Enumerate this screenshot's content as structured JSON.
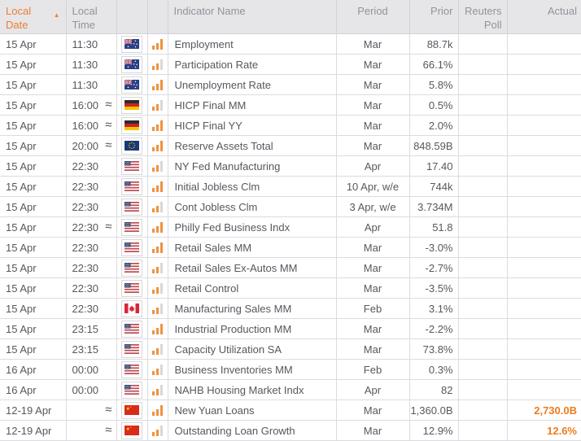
{
  "table": {
    "columns": {
      "date": "Local Date",
      "time": "Local Time",
      "indicator": "Indicator Name",
      "period": "Period",
      "prior": "Prior",
      "poll": "Reuters Poll",
      "actual": "Actual"
    },
    "sort": {
      "column": "Local Date",
      "direction": "ascending",
      "icon": "▲"
    },
    "approx_symbol": "≈",
    "rows": [
      {
        "date": "15 Apr",
        "time": "11:30",
        "approx": false,
        "country": "australia",
        "relevance": "high",
        "indicator": "Employment",
        "period": "Mar",
        "prior": "88.7k",
        "poll": "",
        "actual": ""
      },
      {
        "date": "15 Apr",
        "time": "11:30",
        "approx": false,
        "country": "australia",
        "relevance": "medium",
        "indicator": "Participation Rate",
        "period": "Mar",
        "prior": "66.1%",
        "poll": "",
        "actual": ""
      },
      {
        "date": "15 Apr",
        "time": "11:30",
        "approx": false,
        "country": "australia",
        "relevance": "high",
        "indicator": "Unemployment Rate",
        "period": "Mar",
        "prior": "5.8%",
        "poll": "",
        "actual": ""
      },
      {
        "date": "15 Apr",
        "time": "16:00",
        "approx": true,
        "country": "germany",
        "relevance": "medium",
        "indicator": "HICP Final MM",
        "period": "Mar",
        "prior": "0.5%",
        "poll": "",
        "actual": ""
      },
      {
        "date": "15 Apr",
        "time": "16:00",
        "approx": true,
        "country": "germany",
        "relevance": "high",
        "indicator": "HICP Final YY",
        "period": "Mar",
        "prior": "2.0%",
        "poll": "",
        "actual": ""
      },
      {
        "date": "15 Apr",
        "time": "20:00",
        "approx": true,
        "country": "european-union",
        "relevance": "high",
        "indicator": "Reserve Assets Total",
        "period": "Mar",
        "prior": "848.59B",
        "poll": "",
        "actual": ""
      },
      {
        "date": "15 Apr",
        "time": "22:30",
        "approx": false,
        "country": "united-states",
        "relevance": "medium",
        "indicator": "NY Fed Manufacturing",
        "period": "Apr",
        "prior": "17.40",
        "poll": "",
        "actual": ""
      },
      {
        "date": "15 Apr",
        "time": "22:30",
        "approx": false,
        "country": "united-states",
        "relevance": "high",
        "indicator": "Initial Jobless Clm",
        "period": "10 Apr, w/e",
        "prior": "744k",
        "poll": "",
        "actual": ""
      },
      {
        "date": "15 Apr",
        "time": "22:30",
        "approx": false,
        "country": "united-states",
        "relevance": "medium",
        "indicator": "Cont Jobless Clm",
        "period": "3 Apr, w/e",
        "prior": "3.734M",
        "poll": "",
        "actual": ""
      },
      {
        "date": "15 Apr",
        "time": "22:30",
        "approx": true,
        "country": "united-states",
        "relevance": "high",
        "indicator": "Philly Fed Business Indx",
        "period": "Apr",
        "prior": "51.8",
        "poll": "",
        "actual": ""
      },
      {
        "date": "15 Apr",
        "time": "22:30",
        "approx": false,
        "country": "united-states",
        "relevance": "high",
        "indicator": "Retail Sales MM",
        "period": "Mar",
        "prior": "-3.0%",
        "poll": "",
        "actual": ""
      },
      {
        "date": "15 Apr",
        "time": "22:30",
        "approx": false,
        "country": "united-states",
        "relevance": "medium",
        "indicator": "Retail Sales Ex-Autos MM",
        "period": "Mar",
        "prior": "-2.7%",
        "poll": "",
        "actual": ""
      },
      {
        "date": "15 Apr",
        "time": "22:30",
        "approx": false,
        "country": "united-states",
        "relevance": "medium",
        "indicator": "Retail Control",
        "period": "Mar",
        "prior": "-3.5%",
        "poll": "",
        "actual": ""
      },
      {
        "date": "15 Apr",
        "time": "22:30",
        "approx": false,
        "country": "canada",
        "relevance": "medium",
        "indicator": "Manufacturing Sales MM",
        "period": "Feb",
        "prior": "3.1%",
        "poll": "",
        "actual": ""
      },
      {
        "date": "15 Apr",
        "time": "23:15",
        "approx": false,
        "country": "united-states",
        "relevance": "high",
        "indicator": "Industrial Production MM",
        "period": "Mar",
        "prior": "-2.2%",
        "poll": "",
        "actual": ""
      },
      {
        "date": "15 Apr",
        "time": "23:15",
        "approx": false,
        "country": "united-states",
        "relevance": "medium",
        "indicator": "Capacity Utilization SA",
        "period": "Mar",
        "prior": "73.8%",
        "poll": "",
        "actual": ""
      },
      {
        "date": "16 Apr",
        "time": "00:00",
        "approx": false,
        "country": "united-states",
        "relevance": "medium",
        "indicator": "Business Inventories MM",
        "period": "Feb",
        "prior": "0.3%",
        "poll": "",
        "actual": ""
      },
      {
        "date": "16 Apr",
        "time": "00:00",
        "approx": false,
        "country": "united-states",
        "relevance": "medium",
        "indicator": "NAHB Housing Market Indx",
        "period": "Apr",
        "prior": "82",
        "poll": "",
        "actual": ""
      },
      {
        "date": "12-19 Apr",
        "time": "",
        "approx": true,
        "country": "china",
        "relevance": "high",
        "indicator": "New Yuan Loans",
        "period": "Mar",
        "prior": "1,360.0B",
        "poll": "",
        "actual": "2,730.0B"
      },
      {
        "date": "12-19 Apr",
        "time": "",
        "approx": true,
        "country": "china",
        "relevance": "medium",
        "indicator": "Outstanding Loan Growth",
        "period": "Mar",
        "prior": "12.9%",
        "poll": "",
        "actual": "12.6%"
      }
    ]
  },
  "icons": {
    "sort_ascending": "sort-ascending-icon",
    "approx_time": "approx-time-icon",
    "relevance_chart": "relevance-bars-icon",
    "flags": [
      "australia-flag",
      "germany-flag",
      "european-union-flag",
      "united-states-flag",
      "canada-flag",
      "china-flag"
    ]
  },
  "colors": {
    "accent_orange": "#ef7b36",
    "actual_value_orange": "#ee7c1e",
    "bar_high": "#f0923f",
    "bar_dim": "#d8d8d8",
    "header_bg": "#e6e6e9",
    "header_text": "#92929c",
    "body_text": "#57575f",
    "border": "#dcdcdf"
  }
}
